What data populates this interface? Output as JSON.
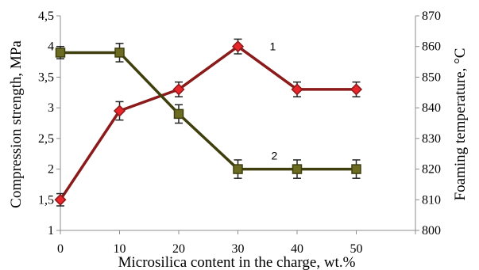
{
  "chart_data": {
    "type": "line",
    "xlabel": "Microsilica content in the charge, wt.%",
    "ylabel": "Compression strength, MPa",
    "y2label": "Foaming temperature, °C",
    "x": [
      0,
      10,
      20,
      30,
      40,
      50
    ],
    "x_ticks": [
      "0",
      "10",
      "20",
      "30",
      "40",
      "50"
    ],
    "xlim": [
      0,
      60
    ],
    "ylim": [
      1,
      4.5
    ],
    "y_ticks": [
      "1",
      "1,5",
      "2",
      "2,5",
      "3",
      "3,5",
      "4",
      "4,5"
    ],
    "y2lim": [
      800,
      870
    ],
    "y2_ticks": [
      "800",
      "810",
      "820",
      "830",
      "840",
      "850",
      "860",
      "870"
    ],
    "grid": false,
    "legend": "none",
    "series": [
      {
        "name": "1",
        "axis": "left",
        "marker": "diamond",
        "line_color": "#8B1A1A",
        "marker_fill": "#E8252A",
        "values": [
          1.5,
          2.95,
          3.3,
          4.0,
          3.3,
          3.3
        ],
        "error": [
          0.1,
          0.15,
          0.12,
          0.12,
          0.12,
          0.12
        ]
      },
      {
        "name": "2",
        "axis": "right",
        "marker": "square",
        "line_color": "#3F3F0E",
        "marker_fill": "#6B6B22",
        "values": [
          858,
          858,
          838,
          820,
          820,
          820
        ],
        "error": [
          2,
          3,
          3,
          3,
          3,
          3
        ]
      }
    ]
  }
}
